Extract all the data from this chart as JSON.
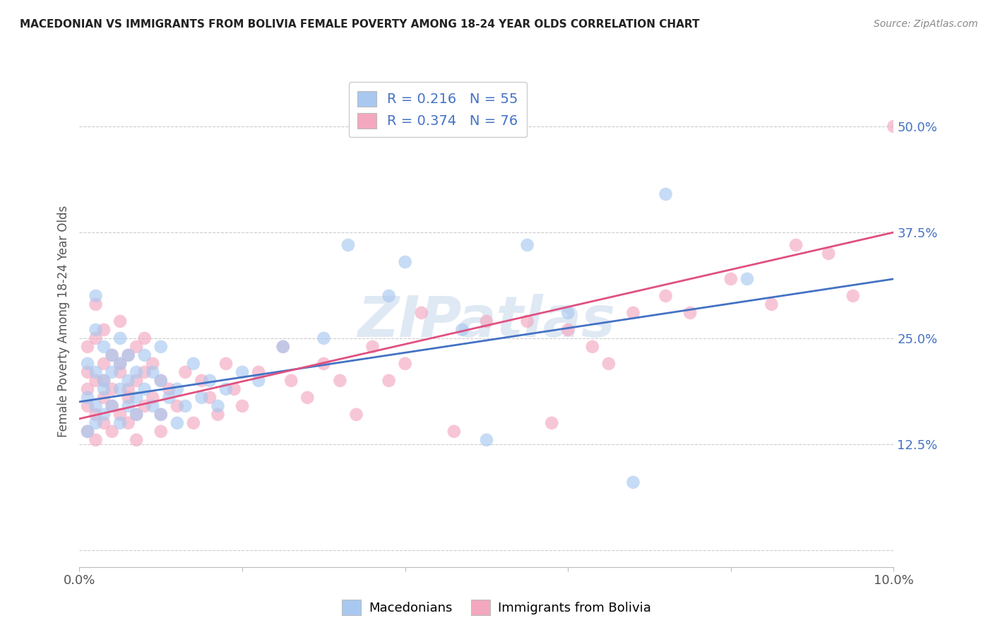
{
  "title": "MACEDONIAN VS IMMIGRANTS FROM BOLIVIA FEMALE POVERTY AMONG 18-24 YEAR OLDS CORRELATION CHART",
  "source": "Source: ZipAtlas.com",
  "ylabel": "Female Poverty Among 18-24 Year Olds",
  "xlim": [
    0.0,
    0.1
  ],
  "ylim": [
    -0.02,
    0.56
  ],
  "yticks": [
    0.0,
    0.125,
    0.25,
    0.375,
    0.5
  ],
  "ytick_labels": [
    "",
    "12.5%",
    "25.0%",
    "37.5%",
    "50.0%"
  ],
  "xticks": [
    0.0,
    0.02,
    0.04,
    0.06,
    0.08,
    0.1
  ],
  "xtick_labels": [
    "0.0%",
    "",
    "",
    "",
    "",
    "10.0%"
  ],
  "blue_R": 0.216,
  "blue_N": 55,
  "pink_R": 0.374,
  "pink_N": 76,
  "blue_color": "#A8C8F0",
  "pink_color": "#F4A8C0",
  "blue_line_color": "#4472C4",
  "pink_line_color": "#E05080",
  "blue_line_x0": 0.0,
  "blue_line_y0": 0.175,
  "blue_line_x1": 0.1,
  "blue_line_y1": 0.32,
  "pink_line_x0": 0.0,
  "pink_line_y0": 0.155,
  "pink_line_x1": 0.1,
  "pink_line_y1": 0.375,
  "blue_scatter_x": [
    0.001,
    0.001,
    0.001,
    0.002,
    0.002,
    0.002,
    0.002,
    0.002,
    0.003,
    0.003,
    0.003,
    0.003,
    0.004,
    0.004,
    0.004,
    0.005,
    0.005,
    0.005,
    0.005,
    0.006,
    0.006,
    0.006,
    0.007,
    0.007,
    0.007,
    0.008,
    0.008,
    0.009,
    0.009,
    0.01,
    0.01,
    0.01,
    0.011,
    0.012,
    0.012,
    0.013,
    0.014,
    0.015,
    0.016,
    0.017,
    0.018,
    0.02,
    0.022,
    0.025,
    0.03,
    0.033,
    0.038,
    0.04,
    0.047,
    0.05,
    0.055,
    0.06,
    0.068,
    0.072,
    0.082
  ],
  "blue_scatter_y": [
    0.18,
    0.22,
    0.14,
    0.17,
    0.21,
    0.26,
    0.3,
    0.15,
    0.2,
    0.24,
    0.16,
    0.19,
    0.21,
    0.17,
    0.23,
    0.19,
    0.15,
    0.22,
    0.25,
    0.2,
    0.17,
    0.23,
    0.18,
    0.21,
    0.16,
    0.19,
    0.23,
    0.17,
    0.21,
    0.16,
    0.2,
    0.24,
    0.18,
    0.15,
    0.19,
    0.17,
    0.22,
    0.18,
    0.2,
    0.17,
    0.19,
    0.21,
    0.2,
    0.24,
    0.25,
    0.36,
    0.3,
    0.34,
    0.26,
    0.13,
    0.36,
    0.28,
    0.08,
    0.42,
    0.32
  ],
  "pink_scatter_x": [
    0.001,
    0.001,
    0.001,
    0.001,
    0.001,
    0.002,
    0.002,
    0.002,
    0.002,
    0.002,
    0.003,
    0.003,
    0.003,
    0.003,
    0.003,
    0.004,
    0.004,
    0.004,
    0.004,
    0.005,
    0.005,
    0.005,
    0.005,
    0.006,
    0.006,
    0.006,
    0.006,
    0.007,
    0.007,
    0.007,
    0.007,
    0.008,
    0.008,
    0.008,
    0.009,
    0.009,
    0.01,
    0.01,
    0.01,
    0.011,
    0.012,
    0.013,
    0.014,
    0.015,
    0.016,
    0.017,
    0.018,
    0.019,
    0.02,
    0.022,
    0.025,
    0.026,
    0.028,
    0.03,
    0.032,
    0.034,
    0.036,
    0.038,
    0.04,
    0.042,
    0.046,
    0.05,
    0.055,
    0.058,
    0.06,
    0.063,
    0.065,
    0.068,
    0.072,
    0.075,
    0.08,
    0.085,
    0.088,
    0.092,
    0.095,
    0.1
  ],
  "pink_scatter_y": [
    0.17,
    0.21,
    0.14,
    0.24,
    0.19,
    0.16,
    0.2,
    0.25,
    0.29,
    0.13,
    0.22,
    0.18,
    0.15,
    0.26,
    0.2,
    0.17,
    0.23,
    0.19,
    0.14,
    0.21,
    0.16,
    0.27,
    0.22,
    0.18,
    0.23,
    0.15,
    0.19,
    0.2,
    0.16,
    0.24,
    0.13,
    0.21,
    0.17,
    0.25,
    0.18,
    0.22,
    0.16,
    0.2,
    0.14,
    0.19,
    0.17,
    0.21,
    0.15,
    0.2,
    0.18,
    0.16,
    0.22,
    0.19,
    0.17,
    0.21,
    0.24,
    0.2,
    0.18,
    0.22,
    0.2,
    0.16,
    0.24,
    0.2,
    0.22,
    0.28,
    0.14,
    0.27,
    0.27,
    0.15,
    0.26,
    0.24,
    0.22,
    0.28,
    0.3,
    0.28,
    0.32,
    0.29,
    0.36,
    0.35,
    0.3,
    0.5
  ]
}
